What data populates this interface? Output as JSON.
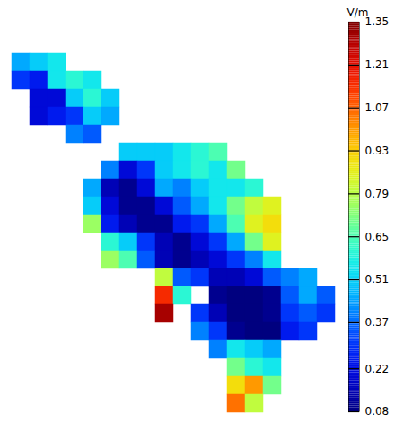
{
  "chart_data": {
    "type": "heatmap",
    "tick_labels": false,
    "cells": [
      [
        0.45,
        0.5,
        0.55,
        null,
        null,
        null,
        null,
        null,
        null,
        null,
        null,
        null,
        null,
        null,
        null,
        null,
        null,
        null
      ],
      [
        0.3,
        0.25,
        0.55,
        0.6,
        0.55,
        null,
        null,
        null,
        null,
        null,
        null,
        null,
        null,
        null,
        null,
        null,
        null,
        null
      ],
      [
        null,
        0.2,
        0.2,
        0.5,
        0.6,
        0.5,
        null,
        null,
        null,
        null,
        null,
        null,
        null,
        null,
        null,
        null,
        null,
        null
      ],
      [
        null,
        0.2,
        0.25,
        0.3,
        0.5,
        0.45,
        null,
        null,
        null,
        null,
        null,
        null,
        null,
        null,
        null,
        null,
        null,
        null
      ],
      [
        null,
        null,
        null,
        0.4,
        0.35,
        null,
        null,
        null,
        null,
        null,
        null,
        null,
        null,
        null,
        null,
        null,
        null,
        null
      ],
      [
        null,
        null,
        null,
        null,
        null,
        null,
        0.5,
        0.5,
        0.5,
        0.55,
        0.6,
        0.65,
        null,
        null,
        null,
        null,
        null,
        null
      ],
      [
        null,
        null,
        null,
        null,
        null,
        0.4,
        0.2,
        0.3,
        0.5,
        0.55,
        0.6,
        0.55,
        0.7,
        null,
        null,
        null,
        null,
        null
      ],
      [
        null,
        null,
        null,
        null,
        0.45,
        0.15,
        0.1,
        0.2,
        0.45,
        0.4,
        0.5,
        0.55,
        0.55,
        0.6,
        null,
        null,
        null,
        null
      ],
      [
        null,
        null,
        null,
        null,
        0.5,
        0.2,
        0.1,
        0.1,
        0.2,
        0.35,
        0.45,
        0.55,
        0.7,
        0.8,
        0.85,
        null,
        null,
        null
      ],
      [
        null,
        null,
        null,
        null,
        0.75,
        0.25,
        0.15,
        0.1,
        0.1,
        0.25,
        0.3,
        0.45,
        0.65,
        0.85,
        0.9,
        null,
        null,
        null
      ],
      [
        null,
        null,
        null,
        null,
        null,
        0.6,
        0.5,
        0.3,
        0.15,
        0.1,
        0.2,
        0.3,
        0.45,
        0.7,
        0.85,
        null,
        null,
        null
      ],
      [
        null,
        null,
        null,
        null,
        null,
        0.75,
        0.65,
        0.35,
        0.15,
        0.1,
        0.15,
        0.2,
        0.3,
        0.4,
        0.55,
        null,
        null,
        null
      ],
      [
        null,
        null,
        null,
        null,
        null,
        null,
        null,
        null,
        0.8,
        0.35,
        0.3,
        0.15,
        0.15,
        0.2,
        0.35,
        0.4,
        0.45,
        null
      ],
      [
        null,
        null,
        null,
        null,
        null,
        null,
        null,
        null,
        1.15,
        0.6,
        null,
        0.1,
        0.08,
        0.08,
        0.1,
        0.35,
        0.45,
        0.35
      ],
      [
        null,
        null,
        null,
        null,
        null,
        null,
        null,
        null,
        1.3,
        null,
        0.3,
        0.15,
        0.08,
        0.08,
        0.1,
        0.3,
        0.35,
        0.3
      ],
      [
        null,
        null,
        null,
        null,
        null,
        null,
        null,
        null,
        null,
        null,
        0.4,
        0.3,
        0.1,
        0.08,
        0.08,
        0.25,
        0.3,
        null
      ],
      [
        null,
        null,
        null,
        null,
        null,
        null,
        null,
        null,
        null,
        null,
        null,
        0.4,
        0.55,
        0.5,
        0.45,
        null,
        null,
        null
      ],
      [
        null,
        null,
        null,
        null,
        null,
        null,
        null,
        null,
        null,
        null,
        null,
        null,
        0.7,
        0.6,
        0.55,
        null,
        null,
        null
      ],
      [
        null,
        null,
        null,
        null,
        null,
        null,
        null,
        null,
        null,
        null,
        null,
        null,
        0.9,
        1.0,
        0.7,
        null,
        null,
        null
      ],
      [
        null,
        null,
        null,
        null,
        null,
        null,
        null,
        null,
        null,
        null,
        null,
        null,
        1.05,
        0.8,
        null,
        null,
        null,
        null
      ]
    ],
    "colorbar": {
      "label": "V/m",
      "range": [
        0.08,
        1.35
      ],
      "ticks": [
        0.08,
        0.22,
        0.37,
        0.51,
        0.65,
        0.79,
        0.93,
        1.07,
        1.21,
        1.35
      ]
    }
  }
}
